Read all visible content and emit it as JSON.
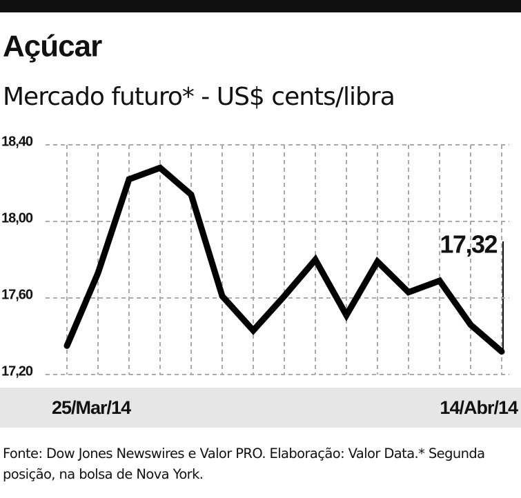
{
  "chart_data": {
    "type": "line",
    "title": "Açúcar",
    "subtitle": "Mercado futuro* - US$ cents/libra",
    "categories": [
      "25/Mar/14",
      null,
      null,
      null,
      null,
      null,
      null,
      null,
      null,
      null,
      null,
      null,
      null,
      null,
      "14/Abr/14"
    ],
    "series": [
      {
        "name": null,
        "color": "#000000",
        "values": [
          17.35,
          17.73,
          18.22,
          18.28,
          18.14,
          17.61,
          17.43,
          17.61,
          17.8,
          17.51,
          17.79,
          17.63,
          17.69,
          17.46,
          17.32
        ],
        "value_labels": [
          null,
          null,
          null,
          null,
          null,
          null,
          null,
          null,
          null,
          null,
          null,
          null,
          null,
          null,
          "17,32"
        ]
      }
    ],
    "ylim": [
      17.2,
      18.4
    ],
    "yticks": [
      {
        "value": 17.2,
        "label": "17,20"
      },
      {
        "value": 17.6,
        "label": "17,60"
      },
      {
        "value": 18.0,
        "label": "18,00"
      },
      {
        "value": 18.4,
        "label": "18,40"
      }
    ],
    "grid": true,
    "source": "Fonte: Dow Jones Newswires e Valor PRO. Elaboração: Valor Data.* Segunda posição, na bolsa de Nova York."
  }
}
